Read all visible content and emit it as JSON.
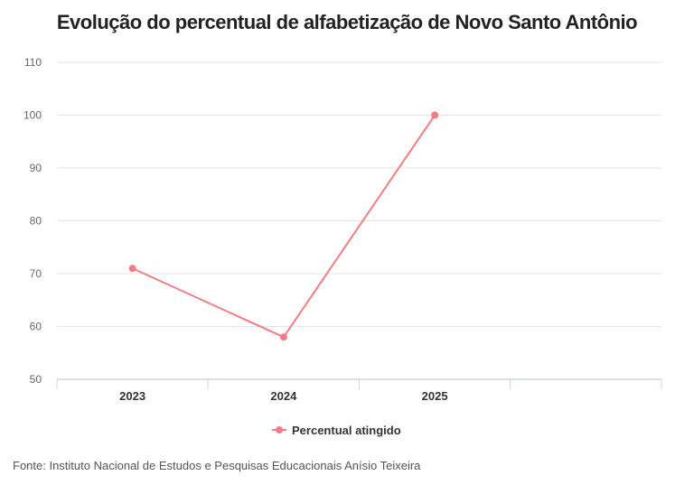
{
  "chart_data": {
    "type": "line",
    "title": "Evolução do percentual de alfabetização de Novo Santo Antônio",
    "categories": [
      "2023",
      "2024",
      "2025"
    ],
    "series": [
      {
        "name": "Percentual atingido",
        "values": [
          71,
          58,
          100
        ],
        "color": "#f47c82"
      }
    ],
    "xlabel": "",
    "ylabel": "",
    "ylim": [
      50,
      110
    ],
    "yticks": [
      "50",
      "60",
      "70",
      "80",
      "90",
      "100",
      "110"
    ],
    "grid": true,
    "legend": "bottom-center"
  },
  "source": "Fonte: Instituto Nacional de Estudos e Pesquisas Educacionais Anísio Teixeira"
}
